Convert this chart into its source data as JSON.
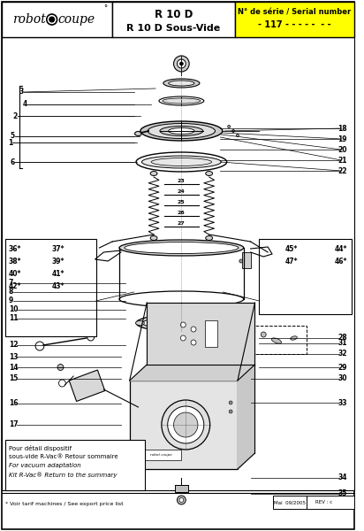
{
  "bg_color": "#ffffff",
  "yellow_color": "#FFFF00",
  "footer_left": "* Voir tarif machines / See export price list",
  "footer_date": "Mai  09/2005",
  "footer_rev": "REV : c",
  "note_line1": "Pour détail dispositif",
  "note_line2": "sous-vide R-Vac® Retour sommaire",
  "note_line3": "For vacuum adaptation",
  "note_line4": "Kit R-Vac® Return to the summary"
}
